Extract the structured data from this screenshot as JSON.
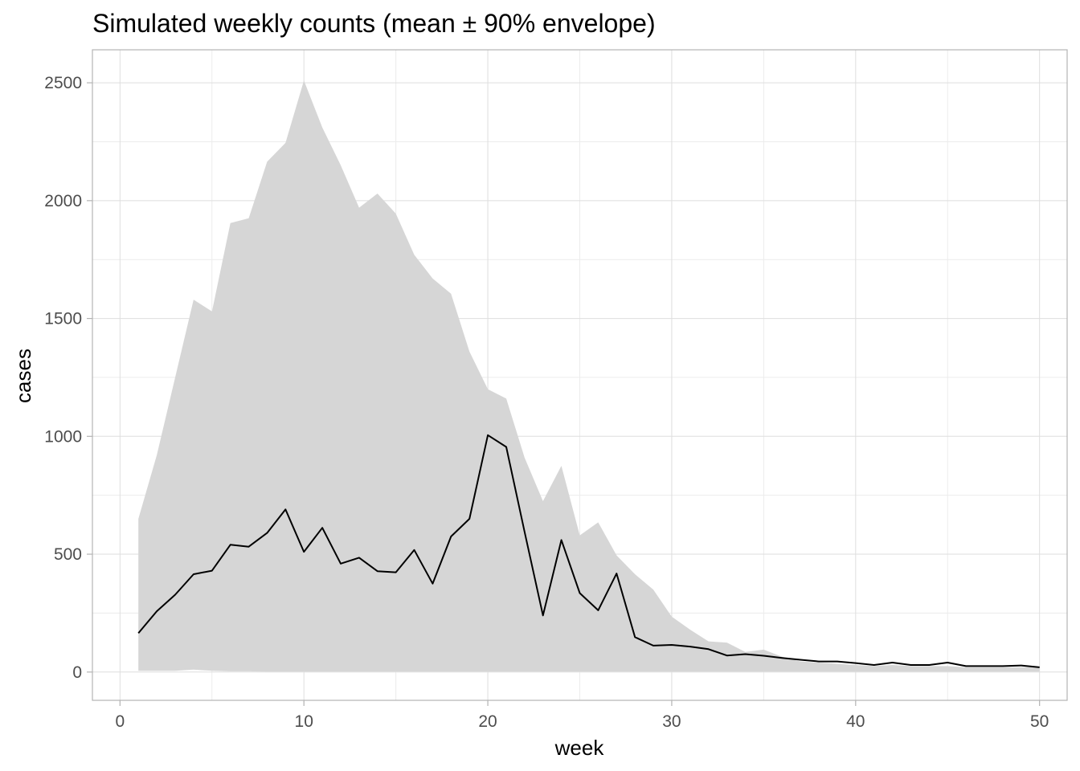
{
  "chart_data": {
    "type": "area",
    "title": "Simulated weekly counts (mean ± 90% envelope)",
    "xlabel": "week",
    "ylabel": "cases",
    "xlim": [
      -1.5,
      51.5
    ],
    "ylim": [
      -120,
      2640
    ],
    "x_ticks": [
      0,
      10,
      20,
      30,
      40,
      50
    ],
    "y_ticks": [
      0,
      500,
      1000,
      1500,
      2000,
      2500
    ],
    "grid": true,
    "legend": "none",
    "x": [
      1,
      2,
      3,
      4,
      5,
      6,
      7,
      8,
      9,
      10,
      11,
      12,
      13,
      14,
      15,
      16,
      17,
      18,
      19,
      20,
      21,
      22,
      23,
      24,
      25,
      26,
      27,
      28,
      29,
      30,
      31,
      32,
      33,
      34,
      35,
      36,
      37,
      38,
      39,
      40,
      41,
      42,
      43,
      44,
      45,
      46,
      47,
      48,
      49,
      50
    ],
    "series": [
      {
        "kind": "ribbon",
        "lower": [
          5,
          5,
          5,
          10,
          5,
          3,
          3,
          2,
          2,
          2,
          2,
          2,
          2,
          2,
          2,
          2,
          2,
          2,
          2,
          2,
          2,
          2,
          2,
          2,
          2,
          2,
          2,
          2,
          2,
          2,
          2,
          2,
          2,
          2,
          2,
          2,
          2,
          2,
          2,
          2,
          2,
          2,
          2,
          2,
          2,
          2,
          2,
          2,
          2,
          2
        ],
        "upper": [
          650,
          920,
          1250,
          1580,
          1530,
          1905,
          1925,
          2165,
          2245,
          2510,
          2310,
          2150,
          1970,
          2030,
          1945,
          1770,
          1670,
          1605,
          1360,
          1200,
          1160,
          910,
          725,
          875,
          580,
          635,
          495,
          415,
          350,
          235,
          180,
          130,
          125,
          85,
          95,
          65,
          45,
          40,
          35,
          30,
          25,
          30,
          25,
          25,
          25,
          20,
          20,
          20,
          20,
          20
        ]
      },
      {
        "kind": "line",
        "values": [
          165,
          258,
          328,
          415,
          430,
          540,
          532,
          590,
          690,
          510,
          612,
          460,
          485,
          428,
          423,
          518,
          375,
          575,
          650,
          1005,
          955,
          595,
          240,
          560,
          335,
          262,
          418,
          148,
          112,
          115,
          108,
          97,
          70,
          76,
          69,
          60,
          52,
          45,
          45,
          38,
          30,
          40,
          30,
          30,
          40,
          25,
          25,
          25,
          28,
          20
        ]
      }
    ],
    "colors": {
      "ribbon": "#d6d6d6",
      "line": "#000000",
      "grid": "#dedede",
      "tick_label": "#4d4d4d"
    }
  }
}
